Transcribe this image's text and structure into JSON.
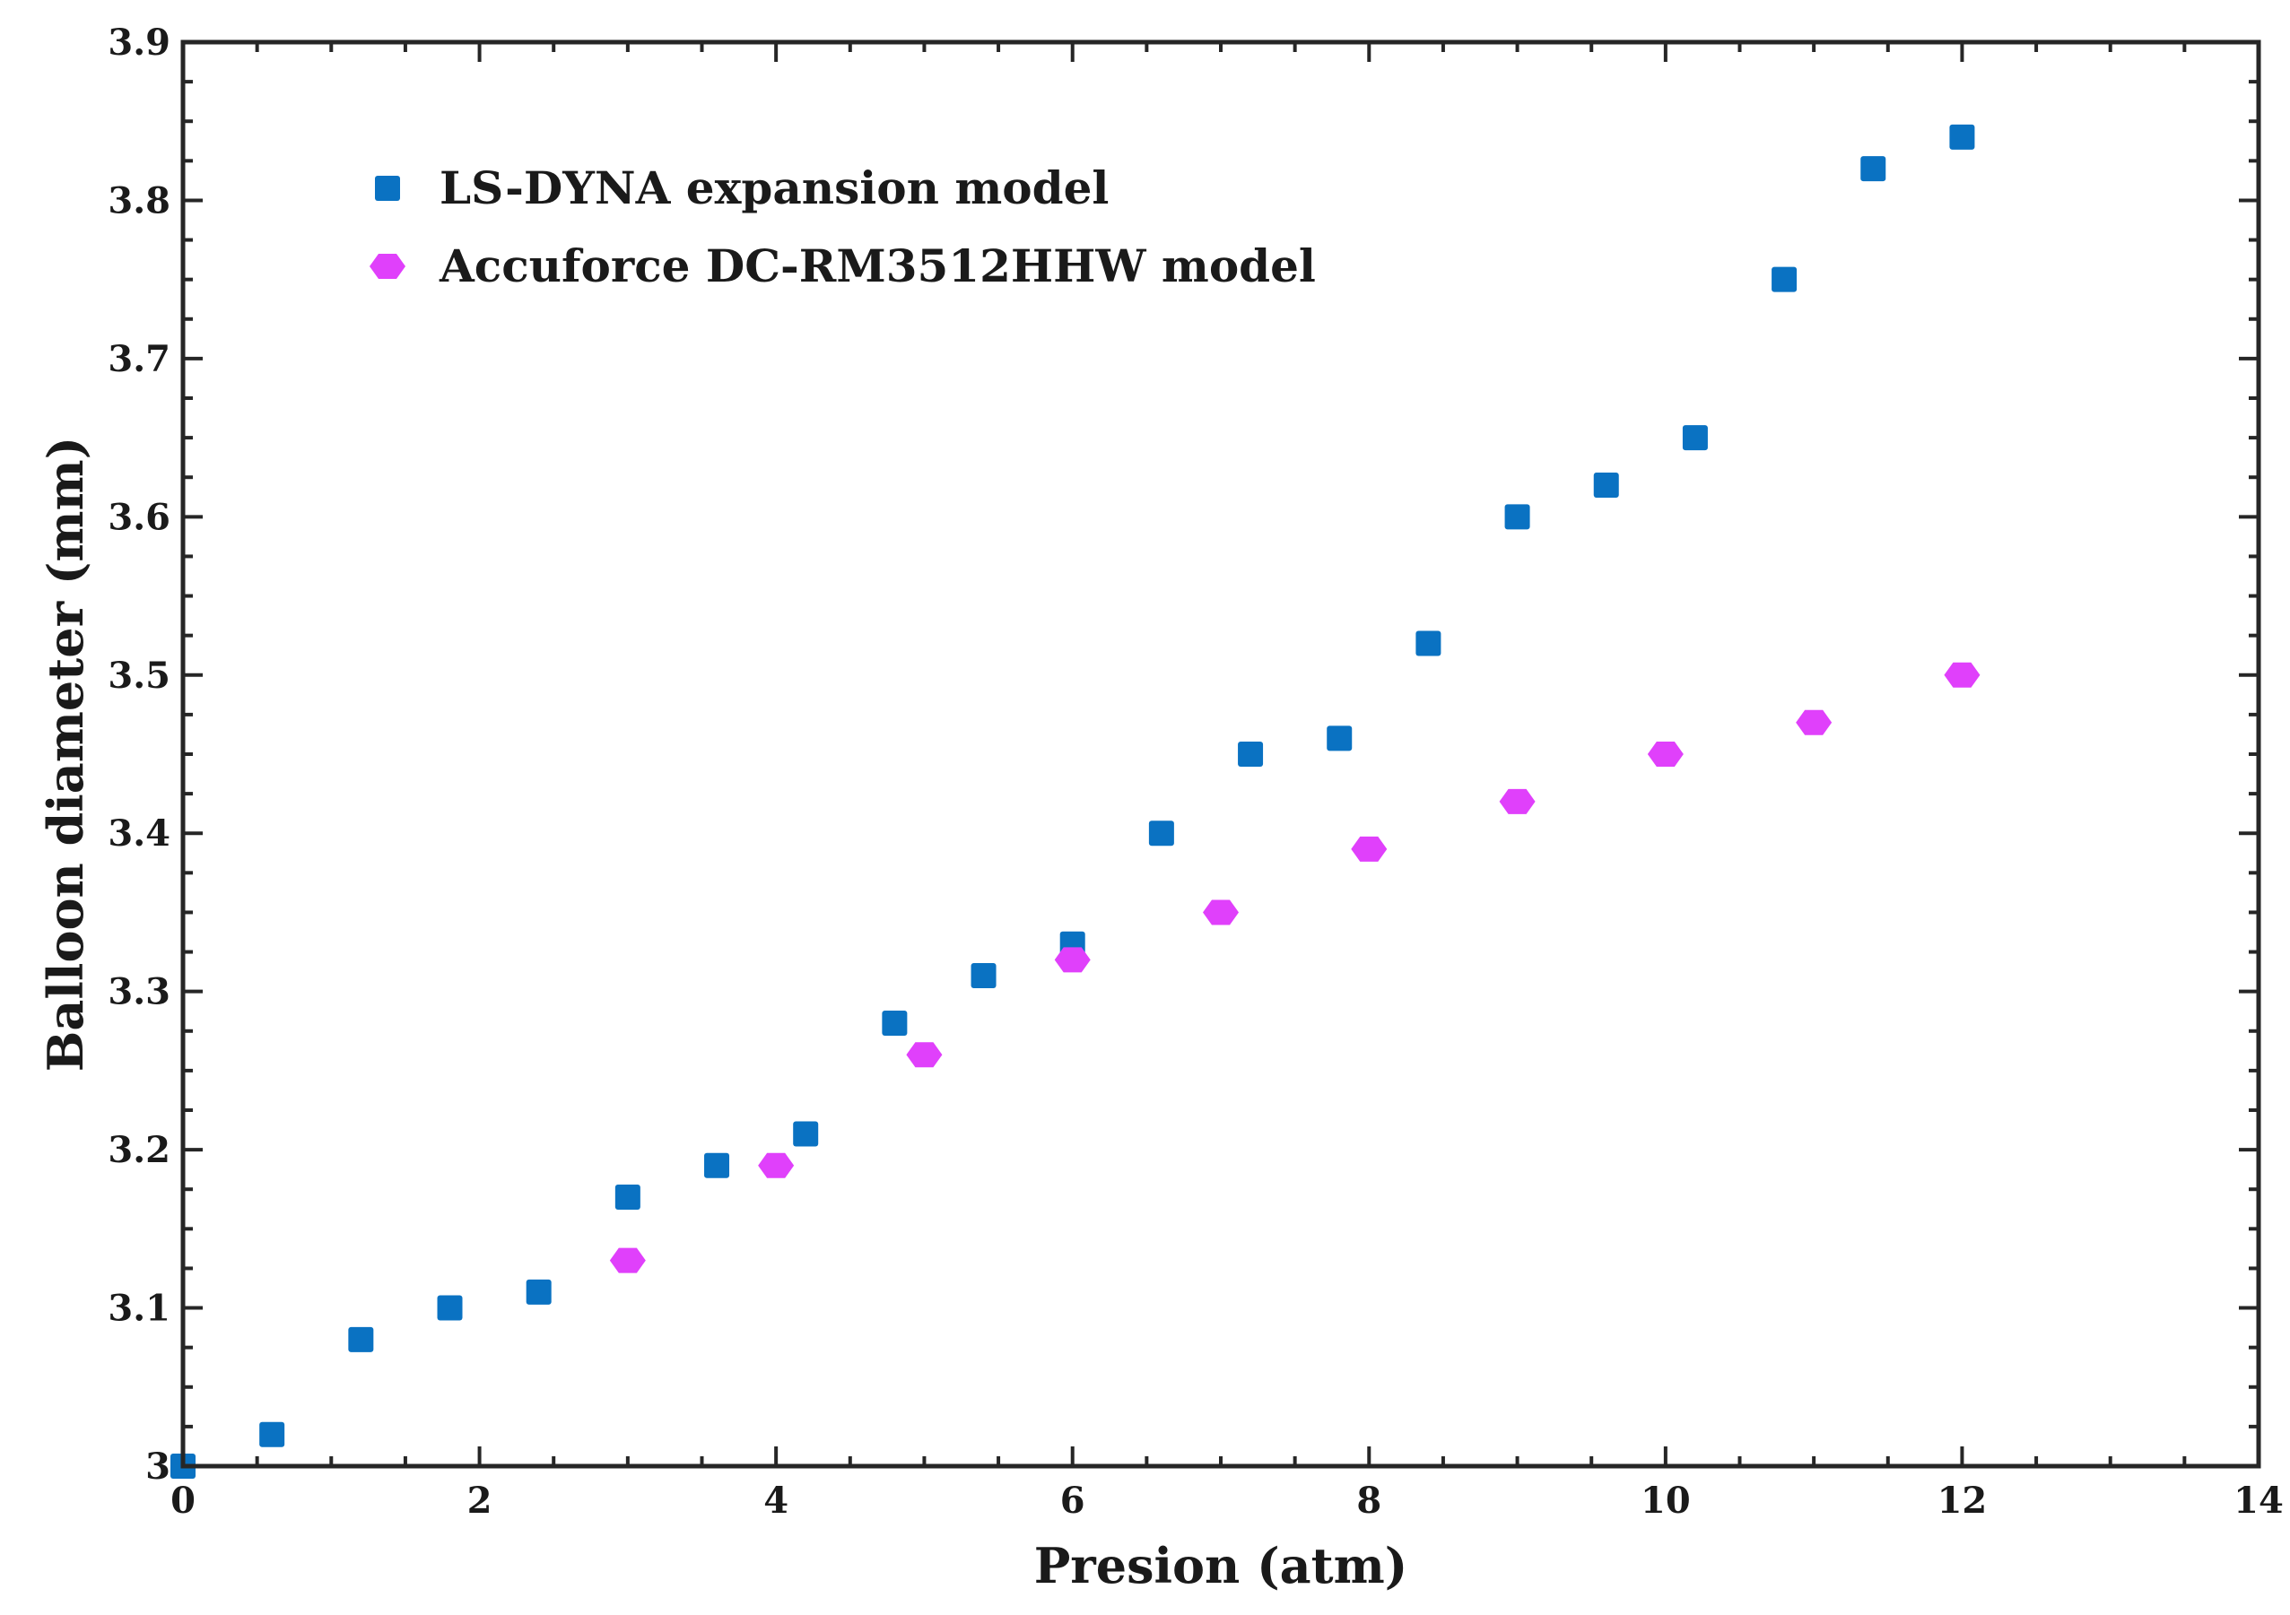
{
  "chart_data": {
    "type": "scatter",
    "title": "",
    "xlabel": "Presion (atm)",
    "ylabel": "Balloon diameter (mm)",
    "xlim": [
      0,
      14
    ],
    "ylim": [
      3.0,
      3.9
    ],
    "x_ticks": [
      "0",
      "2",
      "4",
      "6",
      "8",
      "10",
      "12",
      "14"
    ],
    "y_ticks": [
      "3",
      "3.1",
      "3.2",
      "3.3",
      "3.4",
      "3.5",
      "3.6",
      "3.7",
      "3.8",
      "3.9"
    ],
    "grid": false,
    "legend_position": "top-left",
    "series": [
      {
        "name": "LS-DYNA expansion model",
        "marker": "square",
        "color": "#0a72c2",
        "x": [
          0,
          0.6,
          1.2,
          1.8,
          2.4,
          3.0,
          3.6,
          4.2,
          4.8,
          5.4,
          6.0,
          6.6,
          7.2,
          7.8,
          8.4,
          9.0,
          9.6,
          10.2,
          10.8,
          11.4,
          12.0
        ],
        "y": [
          3.0,
          3.02,
          3.08,
          3.1,
          3.11,
          3.17,
          3.19,
          3.21,
          3.28,
          3.31,
          3.33,
          3.4,
          3.45,
          3.46,
          3.52,
          3.6,
          3.62,
          3.65,
          3.75,
          3.82,
          3.84
        ]
      },
      {
        "name": "Accuforce DC-RM3512HHW model",
        "marker": "hexagon",
        "color": "#e040fb",
        "x": [
          3,
          4,
          5,
          6,
          7,
          8,
          9,
          10,
          11,
          12
        ],
        "y": [
          3.13,
          3.19,
          3.26,
          3.32,
          3.35,
          3.39,
          3.42,
          3.45,
          3.47,
          3.5
        ]
      }
    ]
  }
}
